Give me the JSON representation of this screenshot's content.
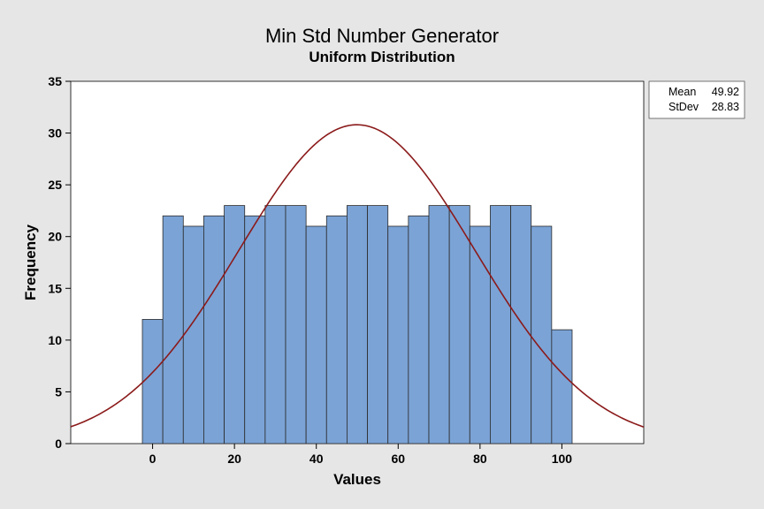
{
  "chart_data": {
    "type": "bar",
    "title": "Min Std Number Generator",
    "subtitle": "Uniform Distribution",
    "xlabel": "Values",
    "ylabel": "Frequency",
    "bin_width": 5,
    "bin_centers": [
      0,
      5,
      10,
      15,
      20,
      25,
      30,
      35,
      40,
      45,
      50,
      55,
      60,
      65,
      70,
      75,
      80,
      85,
      90,
      95,
      100
    ],
    "values": [
      12,
      22,
      21,
      22,
      23,
      22,
      23,
      23,
      21,
      22,
      23,
      23,
      21,
      22,
      23,
      23,
      21,
      23,
      23,
      21,
      11
    ],
    "xlim": [
      -20,
      120
    ],
    "ylim": [
      0,
      35
    ],
    "xticks": [
      0,
      20,
      40,
      60,
      80,
      100
    ],
    "yticks": [
      0,
      5,
      10,
      15,
      20,
      25,
      30,
      35
    ],
    "fit_curve": {
      "type": "normal",
      "mean": 49.92,
      "stdev": 28.83,
      "peak": 30.8
    },
    "stats": [
      {
        "label": "Mean",
        "value": "49.92"
      },
      {
        "label": "StDev",
        "value": "28.83"
      }
    ],
    "grid": false,
    "legend_position": "top-right"
  },
  "colors": {
    "bar_fill": "#7ba3d6",
    "bar_stroke": "#2b2b2b",
    "curve": "#8b1a1a",
    "plot_bg": "#ffffff",
    "page_bg": "#e6e6e6"
  }
}
